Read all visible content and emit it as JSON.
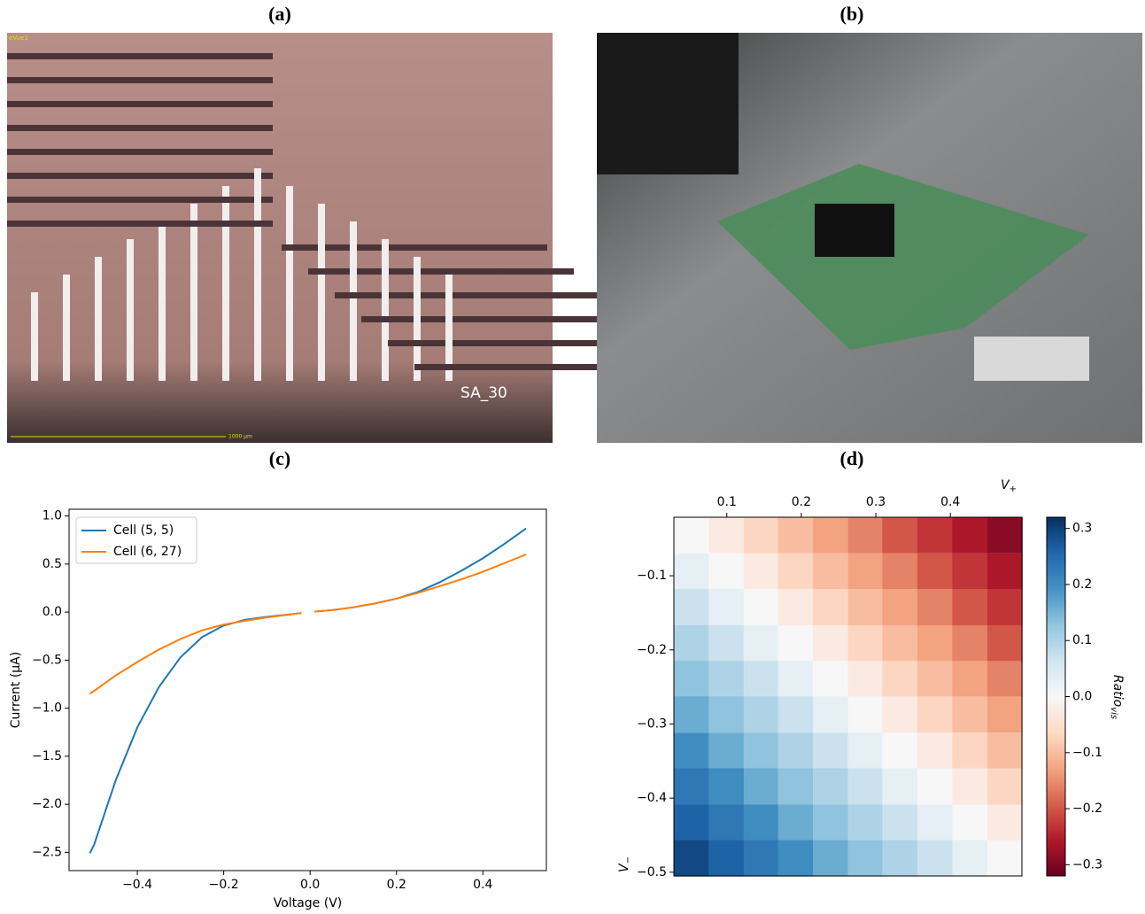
{
  "panel_labels": [
    "(a)",
    "(b)",
    "(c)",
    "(d)"
  ],
  "photo_a_text": [
    "eVue1",
    "SA_30",
    "1000 μm"
  ],
  "chart_data": [
    {
      "type": "line",
      "xlabel": "Voltage (V)",
      "ylabel": "Current (μA)",
      "legend": "upper left",
      "x": [
        -0.51,
        -0.5,
        -0.45,
        -0.4,
        -0.35,
        -0.3,
        -0.25,
        -0.2,
        -0.15,
        -0.1,
        -0.05,
        -0.02,
        0,
        0.01,
        0.05,
        0.1,
        0.15,
        0.2,
        0.25,
        0.3,
        0.35,
        0.4,
        0.45,
        0.5
      ],
      "series": [
        {
          "name": "Cell (5, 5)",
          "color": "#1f77b4",
          "values": [
            -2.51,
            -2.42,
            -1.75,
            -1.2,
            -0.78,
            -0.47,
            -0.26,
            -0.14,
            -0.08,
            -0.05,
            -0.025,
            -0.01,
            null,
            0.005,
            0.02,
            0.05,
            0.09,
            0.14,
            0.21,
            0.31,
            0.43,
            0.56,
            0.71,
            0.87
          ]
        },
        {
          "name": "Cell (6, 27)",
          "color": "#ff7f0e",
          "values": [
            -0.85,
            -0.82,
            -0.66,
            -0.52,
            -0.39,
            -0.28,
            -0.19,
            -0.13,
            -0.09,
            -0.055,
            -0.027,
            -0.01,
            null,
            0.005,
            0.02,
            0.05,
            0.09,
            0.14,
            0.2,
            0.27,
            0.34,
            0.42,
            0.51,
            0.6
          ]
        }
      ],
      "xlim": [
        -0.558,
        0.547
      ],
      "ylim": [
        -2.69,
        1.07
      ],
      "xticks": [
        {
          "value": -0.4,
          "label": "−0.4"
        },
        {
          "value": -0.2,
          "label": "−0.2"
        },
        {
          "value": 0,
          "label": "0.0"
        },
        0.2,
        0.4
      ],
      "yticks": [
        {
          "value": 1,
          "label": "1.0"
        },
        0.5,
        {
          "value": 0,
          "label": "0.0"
        },
        {
          "value": -0.5,
          "label": "−0.5"
        },
        {
          "value": -1,
          "label": "−1.0"
        },
        {
          "value": -1.5,
          "label": "−1.5"
        },
        {
          "value": -2,
          "label": "−2.0"
        },
        {
          "value": -2.5,
          "label": "−2.5"
        }
      ]
    },
    {
      "type": "heatmap",
      "xlabel": "V",
      "xlabel_sub": "+",
      "ylabel": "V",
      "ylabel_sub": "−",
      "colorbar_label": "Ratio",
      "colorbar_label_sub": "vis",
      "colormap": "RdBu",
      "x": [
        0.052,
        0.099,
        0.146,
        0.192,
        0.239,
        0.286,
        0.332,
        0.379,
        0.426,
        0.473
      ],
      "y": [
        -0.045,
        -0.094,
        -0.142,
        -0.191,
        -0.239,
        -0.287,
        -0.336,
        -0.384,
        -0.433,
        -0.481
      ],
      "values": [
        [
          0,
          -0.03,
          -0.07,
          -0.1,
          -0.13,
          -0.16,
          -0.2,
          -0.23,
          -0.26,
          -0.29
        ],
        [
          0.03,
          0,
          -0.03,
          -0.07,
          -0.1,
          -0.13,
          -0.16,
          -0.2,
          -0.23,
          -0.26
        ],
        [
          0.07,
          0.03,
          0,
          -0.03,
          -0.07,
          -0.1,
          -0.13,
          -0.16,
          -0.2,
          -0.23
        ],
        [
          0.1,
          0.07,
          0.03,
          0,
          -0.03,
          -0.07,
          -0.1,
          -0.13,
          -0.16,
          -0.2
        ],
        [
          0.13,
          0.1,
          0.07,
          0.03,
          0,
          -0.03,
          -0.07,
          -0.1,
          -0.13,
          -0.16
        ],
        [
          0.16,
          0.13,
          0.1,
          0.07,
          0.03,
          0,
          -0.03,
          -0.07,
          -0.1,
          -0.13
        ],
        [
          0.2,
          0.16,
          0.13,
          0.1,
          0.07,
          0.03,
          0,
          -0.03,
          -0.07,
          -0.1
        ],
        [
          0.23,
          0.2,
          0.16,
          0.13,
          0.1,
          0.07,
          0.03,
          0,
          -0.03,
          -0.07
        ],
        [
          0.26,
          0.23,
          0.2,
          0.16,
          0.13,
          0.1,
          0.07,
          0.03,
          0,
          -0.03
        ],
        [
          0.29,
          0.26,
          0.23,
          0.2,
          0.16,
          0.13,
          0.1,
          0.07,
          0.03,
          0
        ]
      ],
      "xlim": [
        0.029,
        0.496
      ],
      "ylim": [
        -0.505,
        -0.021
      ],
      "vlim": [
        -0.32,
        0.32
      ],
      "xticks": [
        0.1,
        0.2,
        0.3,
        0.4
      ],
      "yticks": [
        {
          "value": -0.1,
          "label": "−0.1"
        },
        {
          "value": -0.2,
          "label": "−0.2"
        },
        {
          "value": -0.3,
          "label": "−0.3"
        },
        {
          "value": -0.4,
          "label": "−0.4"
        },
        {
          "value": -0.5,
          "label": "−0.5"
        }
      ],
      "cticks": [
        0.3,
        0.2,
        0.1,
        {
          "value": 0,
          "label": "0.0"
        },
        {
          "value": -0.1,
          "label": "−0.1"
        },
        {
          "value": -0.2,
          "label": "−0.2"
        },
        {
          "value": -0.3,
          "label": "−0.3"
        }
      ]
    }
  ]
}
